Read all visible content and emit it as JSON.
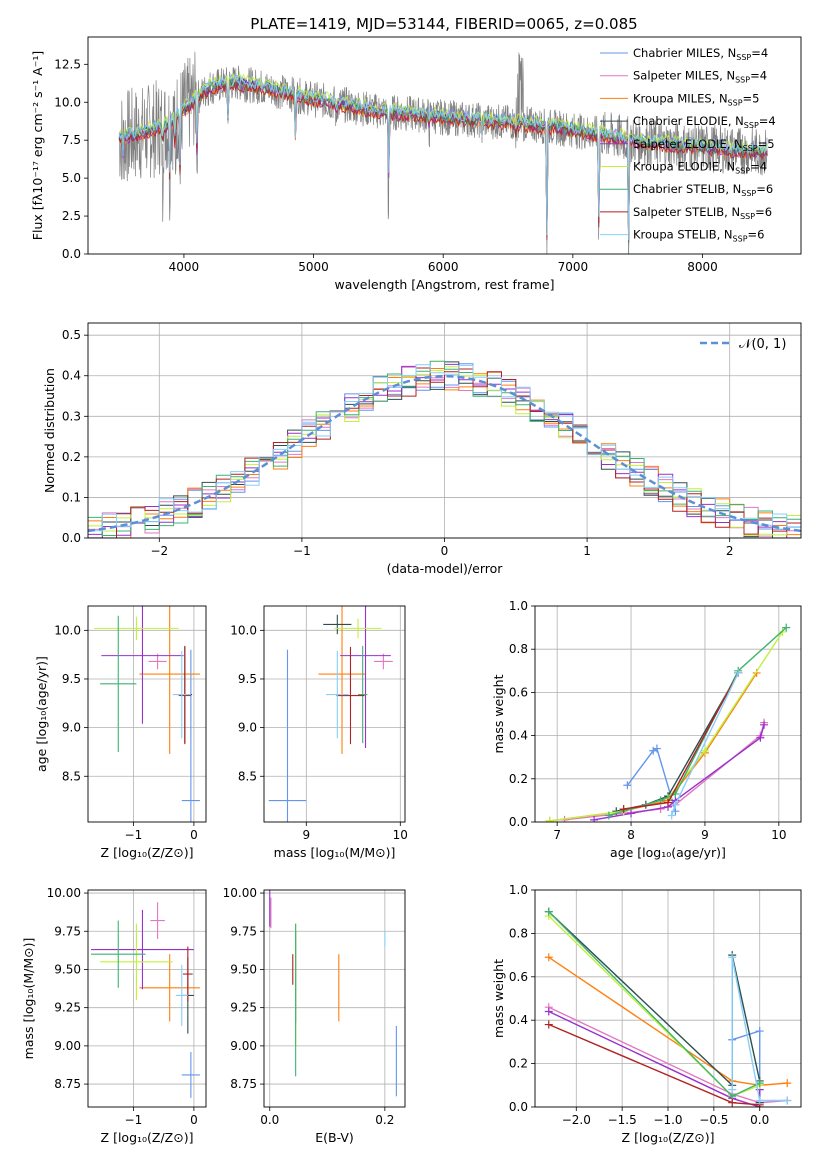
{
  "figure": {
    "title": "PLATE=1419, MJD=53144, FIBERID=0065, z=0.085"
  },
  "colors": {
    "Chabrier MILES": "#6495ed",
    "Salpeter MILES": "#e377c2",
    "Kroupa MILES": "#ff7f0e",
    "Chabrier ELODIE": "#2f4f4f",
    "Salpeter ELODIE": "#9932cc",
    "Kroupa ELODIE": "#c2f03c",
    "Chabrier STELIB": "#3cb371",
    "Salpeter STELIB": "#b22222",
    "Kroupa STELIB": "#87cefa",
    "data": "#808080",
    "normal": "#5b8fd6",
    "grid": "#b0b0b0"
  },
  "chart_data": [
    {
      "id": "spectrum",
      "type": "line",
      "xlabel": "wavelength [Angstrom, rest frame]",
      "ylabel": "Flux [fλ10⁻¹⁷ erg cm⁻² s⁻¹ A⁻¹]",
      "xlim": [
        3260,
        8760
      ],
      "ylim": [
        0,
        14.3
      ],
      "xticks": [
        "4000",
        "5000",
        "6000",
        "7000",
        "8000"
      ],
      "yticks": [
        "0.0",
        "2.5",
        "5.0",
        "7.5",
        "10.0",
        "12.5"
      ],
      "grid": false,
      "legend_position": "top-right",
      "legend": [
        "Chabrier MILES, N",
        "Salpeter MILES, N",
        "Kroupa MILES, N",
        "Chabrier ELODIE, N",
        "Salpeter ELODIE, N",
        "Kroupa ELODIE, N",
        "Chabrier STELIB, N",
        "Salpeter STELIB, N",
        "Kroupa STELIB, N"
      ],
      "legend_sub": "SSP",
      "legend_n": [
        "=4",
        "=4",
        "=5",
        "=4",
        "=5",
        "=4",
        "=6",
        "=6",
        "=6"
      ],
      "data_wavelength_range": [
        3500,
        8500
      ],
      "model_profile": [
        [
          3500,
          7.6
        ],
        [
          3700,
          8.0
        ],
        [
          3900,
          8.6
        ],
        [
          4000,
          9.5
        ],
        [
          4200,
          11.0
        ],
        [
          4400,
          11.3
        ],
        [
          4600,
          11.0
        ],
        [
          4800,
          10.6
        ],
        [
          5000,
          10.2
        ],
        [
          5200,
          9.9
        ],
        [
          5500,
          9.4
        ],
        [
          5800,
          9.2
        ],
        [
          6000,
          9.0
        ],
        [
          6300,
          8.8
        ],
        [
          6600,
          8.6
        ],
        [
          6900,
          8.3
        ],
        [
          7200,
          7.9
        ],
        [
          7500,
          7.4
        ],
        [
          8000,
          7.0
        ],
        [
          8500,
          6.7
        ]
      ],
      "absorption_features": [
        [
          3530,
          1.2
        ],
        [
          3835,
          4.5
        ],
        [
          3890,
          3.8
        ],
        [
          3934,
          5.0
        ],
        [
          3970,
          4.2
        ],
        [
          4102,
          5.5
        ],
        [
          4340,
          2.5
        ],
        [
          4861,
          3.6
        ],
        [
          5175,
          1.8
        ],
        [
          5577,
          8.8
        ],
        [
          5893,
          1.2
        ],
        [
          6300,
          1.0
        ],
        [
          6563,
          1.4
        ],
        [
          6800,
          8.0
        ],
        [
          7200,
          6.5
        ],
        [
          7430,
          7.5
        ]
      ]
    },
    {
      "id": "residuals",
      "type": "line",
      "xlabel": "(data-model)/error",
      "ylabel": "Normed distribution",
      "xlim": [
        -2.5,
        2.5
      ],
      "ylim": [
        0,
        0.53
      ],
      "xticks": [
        "−2",
        "−1",
        "0",
        "1",
        "2"
      ],
      "yticks": [
        "0.0",
        "0.1",
        "0.2",
        "0.3",
        "0.4",
        "0.5"
      ],
      "grid": true,
      "legend_position": "top-right",
      "legend": "𝒩(0, 1)",
      "bin_width": 0.1,
      "curve": "normal(0,1) pdf"
    },
    {
      "id": "age-vs-Z",
      "type": "scatter",
      "xlabel": "Z [log₁₀(Z/Z⊙)]",
      "ylabel": "age  [log₁₀(age/yr)]",
      "xlim": [
        -1.75,
        0.2
      ],
      "ylim": [
        8.03,
        10.25
      ],
      "xticks": [
        "−1",
        "0"
      ],
      "yticks": [
        "8.5",
        "9.0",
        "9.5",
        "10.0"
      ],
      "grid": true,
      "points": [
        {
          "model": "Chabrier MILES",
          "x": -0.05,
          "xerr": 0.15,
          "y": 8.25,
          "yerr": 1.55
        },
        {
          "model": "Salpeter MILES",
          "x": -0.6,
          "xerr": 0.15,
          "y": 9.68,
          "yerr": 0.08
        },
        {
          "model": "Kroupa MILES",
          "x": -0.4,
          "xerr": 0.5,
          "y": 9.55,
          "yerr": 0.82
        },
        {
          "model": "Chabrier ELODIE",
          "x": -0.15,
          "xerr": 0.12,
          "y": 9.34,
          "yerr": 0.5
        },
        {
          "model": "Salpeter ELODIE",
          "x": -0.85,
          "xerr": 0.68,
          "y": 9.74,
          "yerr": 0.7
        },
        {
          "model": "Kroupa ELODIE",
          "x": -0.95,
          "xerr": 0.7,
          "y": 10.02,
          "yerr": 0.12
        },
        {
          "model": "Chabrier STELIB",
          "x": -1.25,
          "xerr": 0.3,
          "y": 9.45,
          "yerr": 0.7
        },
        {
          "model": "Salpeter STELIB",
          "x": -0.15,
          "xerr": 0.1,
          "y": 9.33,
          "yerr": 0.5
        },
        {
          "model": "Kroupa STELIB",
          "x": -0.2,
          "xerr": 0.15,
          "y": 9.34,
          "yerr": 0.45
        }
      ]
    },
    {
      "id": "age-vs-mass",
      "type": "scatter",
      "xlabel": "mass [log₁₀(M/M⊙)]",
      "ylabel": "",
      "xlim": [
        8.55,
        10.05
      ],
      "ylim": [
        8.03,
        10.25
      ],
      "xticks": [
        "9",
        "10"
      ],
      "yticks": [
        "8.5",
        "9.0",
        "9.5",
        "10.0"
      ],
      "grid": true,
      "points": [
        {
          "model": "Chabrier MILES",
          "x": 8.8,
          "xerr": 0.2,
          "y": 8.25,
          "yerr": 1.55
        },
        {
          "model": "Salpeter MILES",
          "x": 9.82,
          "xerr": 0.1,
          "y": 9.68,
          "yerr": 0.08
        },
        {
          "model": "Kroupa MILES",
          "x": 9.38,
          "xerr": 0.25,
          "y": 9.55,
          "yerr": 0.82
        },
        {
          "model": "Chabrier ELODIE",
          "x": 9.33,
          "xerr": 0.15,
          "y": 10.06,
          "yerr": 0.1
        },
        {
          "model": "Salpeter ELODIE",
          "x": 9.63,
          "xerr": 0.27,
          "y": 9.74,
          "yerr": 0.95
        },
        {
          "model": "Kroupa ELODIE",
          "x": 9.55,
          "xerr": 0.25,
          "y": 10.02,
          "yerr": 0.1
        },
        {
          "model": "Chabrier STELIB",
          "x": 9.6,
          "xerr": 0.05,
          "y": 9.34,
          "yerr": 0.5
        },
        {
          "model": "Salpeter STELIB",
          "x": 9.47,
          "xerr": 0.15,
          "y": 9.33,
          "yerr": 0.5
        },
        {
          "model": "Kroupa STELIB",
          "x": 9.33,
          "xerr": 0.12,
          "y": 9.34,
          "yerr": 0.45
        }
      ]
    },
    {
      "id": "mass-weight-vs-age",
      "type": "line",
      "xlabel": "age  [log₁₀(age/yr)]",
      "ylabel": "mass weight",
      "xlim": [
        6.7,
        10.3
      ],
      "ylim": [
        0,
        1.0
      ],
      "xticks": [
        "7",
        "8",
        "9",
        "10"
      ],
      "yticks": [
        "0.0",
        "0.2",
        "0.4",
        "0.6",
        "0.8",
        "1.0"
      ],
      "grid": true,
      "series": [
        {
          "model": "Chabrier MILES",
          "x": [
            7.95,
            8.3,
            8.35,
            8.6
          ],
          "y": [
            0.17,
            0.33,
            0.34,
            0.05
          ]
        },
        {
          "model": "Salpeter MILES",
          "x": [
            7.1,
            8.4,
            8.6,
            9.75,
            9.8
          ],
          "y": [
            0.01,
            0.06,
            0.08,
            0.4,
            0.46
          ]
        },
        {
          "model": "Kroupa MILES",
          "x": [
            6.9,
            7.9,
            8.5,
            9.0,
            9.7
          ],
          "y": [
            0.005,
            0.05,
            0.1,
            0.32,
            0.69
          ]
        },
        {
          "model": "Chabrier ELODIE",
          "x": [
            7.8,
            8.2,
            8.5,
            9.45
          ],
          "y": [
            0.05,
            0.08,
            0.12,
            0.69
          ]
        },
        {
          "model": "Salpeter ELODIE",
          "x": [
            7.5,
            8.0,
            8.5,
            8.6,
            9.75,
            9.8
          ],
          "y": [
            0.01,
            0.04,
            0.07,
            0.1,
            0.39,
            0.45
          ]
        },
        {
          "model": "Kroupa ELODIE",
          "x": [
            6.9,
            7.9,
            8.5,
            9.0,
            10.05
          ],
          "y": [
            0.005,
            0.05,
            0.11,
            0.33,
            0.88
          ]
        },
        {
          "model": "Chabrier STELIB",
          "x": [
            7.7,
            8.4,
            8.6,
            9.45,
            10.1
          ],
          "y": [
            0.03,
            0.1,
            0.13,
            0.7,
            0.9
          ]
        },
        {
          "model": "Salpeter STELIB",
          "x": [
            7.9,
            8.5,
            9.45
          ],
          "y": [
            0.06,
            0.09,
            0.69
          ]
        },
        {
          "model": "Kroupa STELIB",
          "x": [
            8.55,
            8.6,
            9.45
          ],
          "y": [
            0.03,
            0.08,
            0.69
          ]
        }
      ]
    },
    {
      "id": "mass-vs-Z",
      "type": "scatter",
      "xlabel": "Z [log₁₀(Z/Z⊙)]",
      "ylabel": "mass [log₁₀(M/M⊙)]",
      "xlim": [
        -1.75,
        0.2
      ],
      "ylim": [
        8.6,
        10.02
      ],
      "xticks": [
        "−1",
        "0"
      ],
      "yticks": [
        "8.75",
        "9.00",
        "9.25",
        "9.50",
        "9.75",
        "10.00"
      ],
      "grid": true,
      "points": [
        {
          "model": "Chabrier MILES",
          "x": -0.05,
          "xerr": 0.15,
          "y": 8.81,
          "yerr": 0.15
        },
        {
          "model": "Salpeter MILES",
          "x": -0.6,
          "xerr": 0.12,
          "y": 9.82,
          "yerr": 0.12
        },
        {
          "model": "Kroupa MILES",
          "x": -0.4,
          "xerr": 0.5,
          "y": 9.38,
          "yerr": 0.22
        },
        {
          "model": "Chabrier ELODIE",
          "x": -0.1,
          "xerr": 0.1,
          "y": 9.33,
          "yerr": 0.25
        },
        {
          "model": "Salpeter ELODIE",
          "x": -0.85,
          "xerr": 0.85,
          "y": 9.63,
          "yerr": 0.26
        },
        {
          "model": "Kroupa ELODIE",
          "x": -0.95,
          "xerr": 0.6,
          "y": 9.55,
          "yerr": 0.25
        },
        {
          "model": "Chabrier STELIB",
          "x": -1.25,
          "xerr": 0.45,
          "y": 9.6,
          "yerr": 0.22
        },
        {
          "model": "Salpeter STELIB",
          "x": -0.1,
          "xerr": 0.08,
          "y": 9.47,
          "yerr": 0.18
        },
        {
          "model": "Kroupa STELIB",
          "x": -0.2,
          "xerr": 0.1,
          "y": 9.33,
          "yerr": 0.2
        }
      ]
    },
    {
      "id": "mass-vs-ebv",
      "type": "scatter",
      "xlabel": "E(B-V)",
      "ylabel": "",
      "xlim": [
        -0.01,
        0.235
      ],
      "ylim": [
        8.6,
        10.02
      ],
      "xticks": [
        "0.0",
        "0.2"
      ],
      "yticks": [
        "8.75",
        "9.00",
        "9.25",
        "9.50",
        "9.75",
        "10.00"
      ],
      "grid": true,
      "points": [
        {
          "model": "Chabrier MILES",
          "x": 0.22,
          "xerr": 0,
          "y": 8.9,
          "yerr": 0.23
        },
        {
          "model": "Salpeter MILES",
          "x": 0.002,
          "xerr": 0,
          "y": 9.87,
          "yerr": 0.1
        },
        {
          "model": "Kroupa MILES",
          "x": 0.12,
          "xerr": 0,
          "y": 9.38,
          "yerr": 0.22
        },
        {
          "model": "Chabrier ELODIE",
          "x": 0.045,
          "xerr": 0,
          "y": 9.45,
          "yerr": 0.3
        },
        {
          "model": "Salpeter ELODIE",
          "x": 0.0,
          "xerr": 0,
          "y": 9.9,
          "yerr": 0.12
        },
        {
          "model": "Kroupa ELODIE",
          "x": 0.045,
          "xerr": 0,
          "y": 9.4,
          "yerr": 0.4
        },
        {
          "model": "Chabrier STELIB",
          "x": 0.045,
          "xerr": 0,
          "y": 9.3,
          "yerr": 0.5
        },
        {
          "model": "Salpeter STELIB",
          "x": 0.04,
          "xerr": 0,
          "y": 9.5,
          "yerr": 0.1
        },
        {
          "model": "Kroupa STELIB",
          "x": 0.2,
          "xerr": 0,
          "y": 9.7,
          "yerr": 0.05
        }
      ]
    },
    {
      "id": "mass-weight-vs-Z",
      "type": "line",
      "xlabel": "Z [log₁₀(Z/Z⊙)]",
      "ylabel": "mass weight",
      "xlim": [
        -2.45,
        0.45
      ],
      "ylim": [
        0,
        1.0
      ],
      "xticks": [
        "−2.0",
        "−1.5",
        "−1.0",
        "−0.5",
        "0.0"
      ],
      "yticks": [
        "0.0",
        "0.2",
        "0.4",
        "0.6",
        "0.8",
        "1.0"
      ],
      "grid": true,
      "series": [
        {
          "model": "Chabrier MILES",
          "x": [
            -0.3,
            0.0,
            0.0
          ],
          "y": [
            0.31,
            0.35,
            0.02
          ]
        },
        {
          "model": "Salpeter MILES",
          "x": [
            -2.3,
            -0.3,
            0.0,
            0.3
          ],
          "y": [
            0.46,
            0.06,
            0.02,
            0.03
          ]
        },
        {
          "model": "Kroupa MILES",
          "x": [
            -2.3,
            -0.3,
            0.0,
            0.3
          ],
          "y": [
            0.69,
            0.12,
            0.1,
            0.11
          ]
        },
        {
          "model": "Chabrier ELODIE",
          "x": [
            -2.3,
            -0.3,
            -0.3,
            0.0,
            0.0
          ],
          "y": [
            0.9,
            0.1,
            0.7,
            0.12,
            0.02
          ]
        },
        {
          "model": "Salpeter ELODIE",
          "x": [
            -2.3,
            -0.3,
            0.0,
            0.0
          ],
          "y": [
            0.44,
            0.04,
            0.0,
            0.08
          ]
        },
        {
          "model": "Kroupa ELODIE",
          "x": [
            -2.3,
            -0.3,
            0.0
          ],
          "y": [
            0.88,
            0.05,
            0.1
          ]
        },
        {
          "model": "Chabrier STELIB",
          "x": [
            -2.3,
            -0.3,
            0.0
          ],
          "y": [
            0.9,
            0.05,
            0.11
          ]
        },
        {
          "model": "Salpeter STELIB",
          "x": [
            -2.3,
            -0.3,
            0.0
          ],
          "y": [
            0.38,
            0.02,
            0.01
          ]
        },
        {
          "model": "Kroupa STELIB",
          "x": [
            -0.3,
            -0.3,
            0.0,
            0.3
          ],
          "y": [
            0.08,
            0.69,
            0.03,
            0.03
          ]
        }
      ]
    }
  ]
}
